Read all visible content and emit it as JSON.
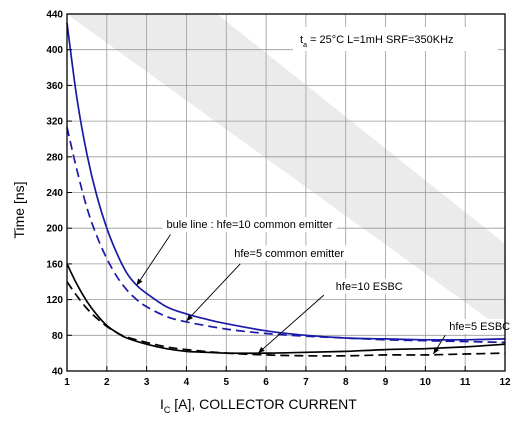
{
  "chart_data": {
    "type": "line",
    "xlabel": {
      "main": "I",
      "sub": "C",
      "rest": " [A], COLLECTOR CURRENT"
    },
    "ylabel": "Time [ns]",
    "xlim": [
      1,
      12
    ],
    "ylim": [
      40,
      440
    ],
    "x_ticks": [
      "1",
      "2",
      "3",
      "4",
      "5",
      "6",
      "7",
      "8",
      "9",
      "10",
      "11",
      "12"
    ],
    "y_ticks": [
      "40",
      "80",
      "120",
      "160",
      "200",
      "240",
      "280",
      "320",
      "360",
      "400",
      "440"
    ],
    "grid": true,
    "condition": {
      "t": "t",
      "sub": "a",
      "rest": " = 25°C L=1mH SRF=350KHz"
    },
    "colors": {
      "blue": "#1a1aa8",
      "black": "#000000",
      "grid": "#9a9a9a",
      "band": "#ebebeb"
    },
    "series": [
      {
        "name": "bule line : hfe=10 common emitter",
        "color": "#1a1aa8",
        "style": "solid",
        "x": [
          1,
          1.25,
          1.5,
          1.75,
          2,
          2.25,
          2.5,
          2.75,
          3,
          3.5,
          4,
          4.5,
          5,
          6,
          7,
          8,
          9,
          10,
          11,
          12
        ],
        "y": [
          430,
          345,
          283,
          236,
          200,
          172,
          150,
          136,
          127,
          112,
          104,
          98,
          93,
          85,
          80,
          77,
          76,
          75,
          75,
          76
        ]
      },
      {
        "name": "hfe=5 common emitter",
        "color": "#1a1aa8",
        "style": "dashed",
        "x": [
          1,
          1.25,
          1.5,
          1.75,
          2,
          2.25,
          2.5,
          2.75,
          3,
          3.5,
          4,
          5,
          6,
          7,
          8,
          9,
          10,
          11,
          12
        ],
        "y": [
          313,
          265,
          223,
          191,
          166,
          146,
          131,
          120,
          112,
          101,
          95,
          87,
          82,
          79,
          77,
          75,
          74,
          73,
          72
        ]
      },
      {
        "name": "hfe=10 ESBC",
        "color": "#000000",
        "style": "solid",
        "x": [
          1,
          1.25,
          1.5,
          1.75,
          2,
          2.25,
          2.5,
          3,
          3.5,
          4,
          4.5,
          5,
          6,
          7,
          8,
          9,
          10,
          11,
          12
        ],
        "y": [
          160,
          137,
          118,
          103,
          91,
          83,
          77,
          70,
          65,
          62,
          61,
          60,
          60,
          61,
          62,
          64,
          65,
          67,
          70
        ]
      },
      {
        "name": "hfe=5 ESBC",
        "color": "#000000",
        "style": "dashed",
        "x": [
          1,
          1.25,
          1.5,
          1.75,
          2,
          2.25,
          2.5,
          3,
          3.5,
          4,
          5,
          6,
          7,
          8,
          9,
          10,
          11,
          12
        ],
        "y": [
          140,
          124,
          110,
          99,
          90,
          83,
          78,
          72,
          67,
          64,
          60,
          58,
          57,
          57,
          58,
          58,
          59,
          60
        ]
      }
    ],
    "annotations": [
      {
        "text": "bule line : hfe=10 common emitter",
        "series": 0,
        "point": [
          2.75,
          136
        ],
        "label_at": [
          3.5,
          200
        ],
        "arrow_end": [
          3.6,
          193
        ]
      },
      {
        "text": "hfe=5 common emitter",
        "series": 1,
        "point": [
          4.0,
          96
        ],
        "label_at": [
          5.2,
          168
        ],
        "arrow_end": [
          5.35,
          160
        ]
      },
      {
        "text": "hfe=10 ESBC",
        "series": 2,
        "point": [
          5.8,
          60
        ],
        "label_at": [
          7.75,
          131
        ],
        "arrow_end": [
          7.45,
          125
        ]
      },
      {
        "text": "hfe=5 ESBC",
        "series": 3,
        "point": [
          10.2,
          59
        ],
        "label_at": [
          10.6,
          86
        ],
        "arrow_end": [
          10.5,
          80
        ]
      }
    ]
  }
}
